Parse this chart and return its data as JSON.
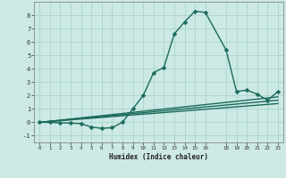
{
  "xlabel": "Humidex (Indice chaleur)",
  "bg_color": "#cce9e5",
  "grid_color": "#aad4cf",
  "line_color": "#1a6b5a",
  "markersize": 2.5,
  "linewidth": 1.0,
  "xlim": [
    -0.5,
    23.5
  ],
  "ylim": [
    -1.5,
    9.0
  ],
  "xtick_positions": [
    0,
    1,
    2,
    3,
    4,
    5,
    6,
    7,
    8,
    9,
    10,
    11,
    12,
    13,
    14,
    15,
    16,
    18,
    19,
    20,
    21,
    22,
    23
  ],
  "xtick_labels": [
    "0",
    "1",
    "2",
    "3",
    "4",
    "5",
    "6",
    "7",
    "8",
    "9",
    "10",
    "11",
    "12",
    "13",
    "14",
    "15",
    "16",
    "18",
    "19",
    "20",
    "21",
    "22",
    "23"
  ],
  "yticks": [
    -1,
    0,
    1,
    2,
    3,
    4,
    5,
    6,
    7,
    8
  ],
  "series": [
    {
      "x": [
        0,
        1,
        2,
        3,
        4,
        5,
        6,
        7,
        8,
        9,
        10,
        11,
        12,
        13,
        14,
        15,
        16,
        18,
        19,
        20,
        21,
        22,
        23
      ],
      "y": [
        0.0,
        0.0,
        -0.05,
        -0.05,
        -0.1,
        -0.35,
        -0.45,
        -0.4,
        0.0,
        1.0,
        2.0,
        3.7,
        4.1,
        6.6,
        7.5,
        8.3,
        8.2,
        5.4,
        2.3,
        2.4,
        2.1,
        1.65,
        2.3
      ],
      "has_markers": true
    },
    {
      "x": [
        0,
        23
      ],
      "y": [
        0.0,
        1.9
      ],
      "has_markers": false
    },
    {
      "x": [
        0,
        23
      ],
      "y": [
        0.0,
        1.65
      ],
      "has_markers": false
    },
    {
      "x": [
        0,
        23
      ],
      "y": [
        0.0,
        1.4
      ],
      "has_markers": false
    }
  ]
}
